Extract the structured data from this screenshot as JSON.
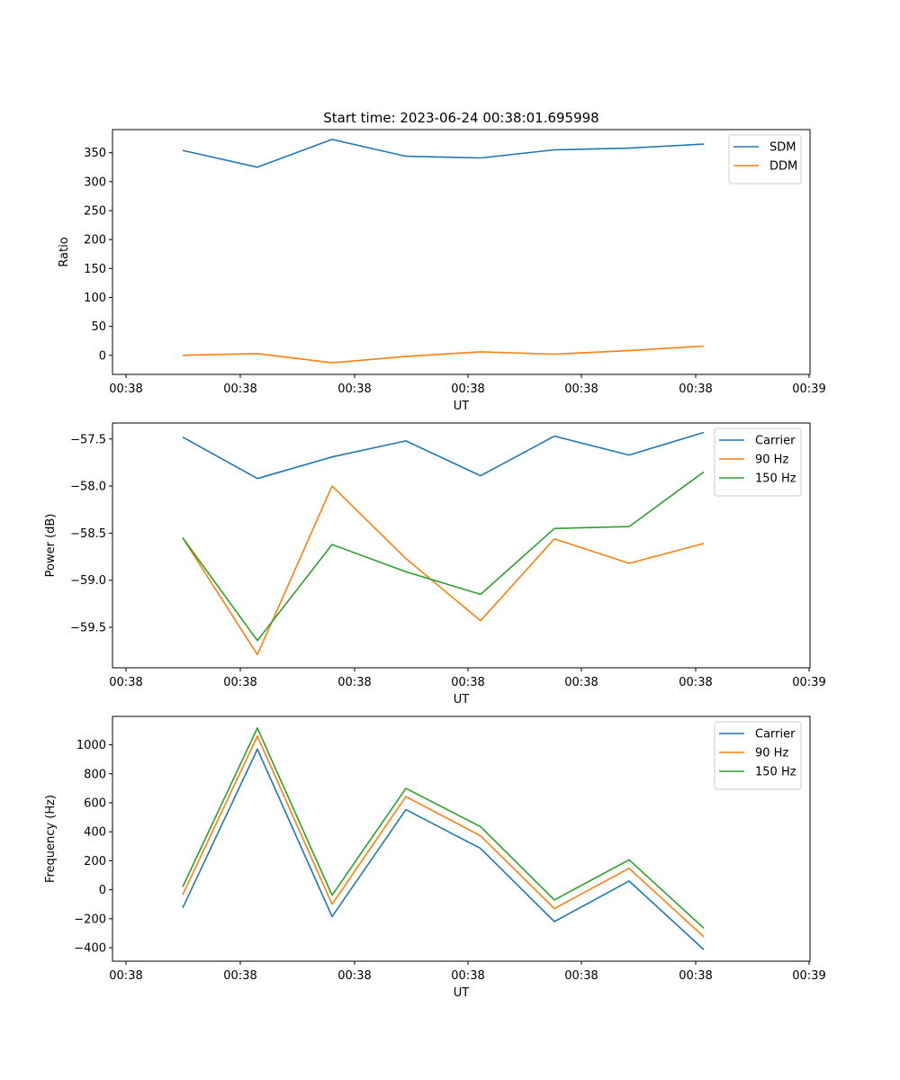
{
  "figure": {
    "title": "Start time: 2023-06-24 00:38:01.695998"
  },
  "colors": {
    "blue": "#1f77b4",
    "orange": "#ff7f0e",
    "green": "#2ca02c",
    "axis": "#000000",
    "legend_border": "#cccccc"
  },
  "chart_data": [
    {
      "type": "line",
      "title": "Start time: 2023-06-24 00:38:01.695998",
      "xlabel": "UT",
      "ylabel": "Ratio",
      "x_ticks": [
        "00:38",
        "00:38",
        "00:38",
        "00:38",
        "00:38",
        "00:38",
        "00:38"
      ],
      "x_tick_last": "00:39",
      "y_ticks": [
        0,
        50,
        100,
        150,
        200,
        250,
        300,
        350
      ],
      "ylim": [
        -33,
        390
      ],
      "legend": "top-right",
      "series": [
        {
          "name": "SDM",
          "color": "#1f77b4",
          "values": [
            354,
            325,
            373,
            344,
            341,
            355,
            358,
            365
          ]
        },
        {
          "name": "DDM",
          "color": "#ff7f0e",
          "values": [
            0,
            3,
            -13,
            -2,
            6,
            2,
            8,
            16
          ]
        }
      ]
    },
    {
      "type": "line",
      "title": "",
      "xlabel": "UT",
      "ylabel": "Power (dB)",
      "x_ticks": [
        "00:38",
        "00:38",
        "00:38",
        "00:38",
        "00:38",
        "00:38",
        "00:38"
      ],
      "x_tick_last": "00:39",
      "y_ticks": [
        -59.5,
        -59.0,
        -58.5,
        -58.0,
        -57.5
      ],
      "y_tick_labels": [
        "−59.5",
        "−59.0",
        "−58.5",
        "−58.0",
        "−57.5"
      ],
      "ylim": [
        -59.93,
        -57.33
      ],
      "legend": "top-right",
      "series": [
        {
          "name": "Carrier",
          "color": "#1f77b4",
          "values": [
            -57.48,
            -57.92,
            -57.69,
            -57.52,
            -57.89,
            -57.47,
            -57.67,
            -57.43
          ]
        },
        {
          "name": "90 Hz",
          "color": "#ff7f0e",
          "values": [
            -58.55,
            -59.79,
            -58.0,
            -58.77,
            -59.43,
            -58.56,
            -58.82,
            -58.61
          ]
        },
        {
          "name": "150 Hz",
          "color": "#2ca02c",
          "values": [
            -58.55,
            -59.64,
            -58.62,
            -58.91,
            -59.15,
            -58.45,
            -58.43,
            -57.85
          ]
        }
      ]
    },
    {
      "type": "line",
      "title": "",
      "xlabel": "UT",
      "ylabel": "Frequency (Hz)",
      "x_ticks": [
        "00:38",
        "00:38",
        "00:38",
        "00:38",
        "00:38",
        "00:38",
        "00:38"
      ],
      "x_tick_last": "00:39",
      "y_ticks": [
        -400,
        -200,
        0,
        200,
        400,
        600,
        800,
        1000
      ],
      "y_tick_labels": [
        "−400",
        "−200",
        "0",
        "200",
        "400",
        "600",
        "800",
        "1000"
      ],
      "ylim": [
        -493,
        1196
      ],
      "legend": "top-right",
      "series": [
        {
          "name": "Carrier",
          "color": "#1f77b4",
          "values": [
            -125,
            970,
            -185,
            553,
            285,
            -220,
            60,
            -413
          ]
        },
        {
          "name": "90 Hz",
          "color": "#ff7f0e",
          "values": [
            -35,
            1060,
            -100,
            643,
            372,
            -130,
            148,
            -325
          ]
        },
        {
          "name": "150 Hz",
          "color": "#2ca02c",
          "values": [
            20,
            1116,
            -38,
            700,
            435,
            -70,
            207,
            -265
          ]
        }
      ]
    }
  ]
}
